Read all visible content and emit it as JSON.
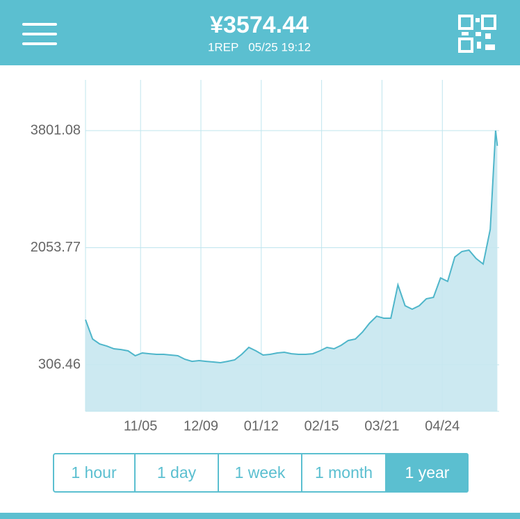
{
  "header": {
    "price": "¥3574.44",
    "subtitle": "1REP   05/25 19:12"
  },
  "chart_data": {
    "type": "area",
    "x": [
      "10/05",
      "10/09",
      "10/13",
      "10/17",
      "10/21",
      "10/25",
      "10/29",
      "11/02",
      "11/06",
      "11/10",
      "11/14",
      "11/18",
      "11/22",
      "11/26",
      "11/30",
      "12/04",
      "12/08",
      "12/12",
      "12/16",
      "12/20",
      "12/24",
      "12/28",
      "01/01",
      "01/05",
      "01/09",
      "01/13",
      "01/17",
      "01/21",
      "01/25",
      "01/29",
      "02/02",
      "02/06",
      "02/10",
      "02/14",
      "02/18",
      "02/22",
      "02/26",
      "03/02",
      "03/06",
      "03/10",
      "03/14",
      "03/18",
      "03/22",
      "03/26",
      "03/30",
      "04/03",
      "04/07",
      "04/11",
      "04/15",
      "04/19",
      "04/23",
      "04/27",
      "05/01",
      "05/05",
      "05/09",
      "05/13",
      "05/17",
      "05/21",
      "05/24",
      "05/25"
    ],
    "values": [
      980,
      690,
      617,
      586,
      545,
      534,
      514,
      441,
      483,
      472,
      462,
      462,
      452,
      441,
      389,
      358,
      369,
      358,
      348,
      338,
      358,
      379,
      462,
      566,
      514,
      452,
      462,
      483,
      493,
      472,
      462,
      462,
      472,
      514,
      566,
      545,
      597,
      669,
      690,
      794,
      928,
      1032,
      1001,
      1001,
      1499,
      1188,
      1136,
      1188,
      1292,
      1312,
      1603,
      1551,
      1914,
      1997,
      2018,
      1893,
      1810,
      2329,
      3801.08,
      3574.44
    ],
    "color": "#4fb6ca",
    "fill": "#c6e7ef",
    "xlim": [
      "10/05",
      "05/26"
    ],
    "xticks": [
      "11/05",
      "12/09",
      "01/12",
      "02/15",
      "03/21",
      "04/24"
    ],
    "ylim": [
      -388,
      4558
    ],
    "yticks": [
      306.46,
      2053.77,
      3801.08
    ],
    "grid": true
  },
  "range_buttons": [
    "1 hour",
    "1 day",
    "1 week",
    "1 month",
    "1 year"
  ],
  "selected_button": 4
}
